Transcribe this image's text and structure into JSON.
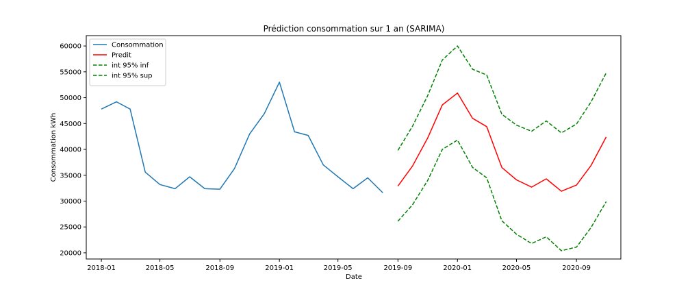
{
  "chart_data": {
    "type": "line",
    "title": "Prédiction consommation sur 1 an (SARIMA)",
    "xlabel": "Date",
    "ylabel": "Consommation kWh",
    "xlim": [
      "2017-12-01",
      "2020-12-01"
    ],
    "ylim": [
      18800,
      62000
    ],
    "x_ticks": [
      "2018-01",
      "2018-05",
      "2018-09",
      "2019-01",
      "2019-05",
      "2019-09",
      "2020-01",
      "2020-05",
      "2020-09"
    ],
    "y_ticks": [
      20000,
      25000,
      30000,
      35000,
      40000,
      45000,
      50000,
      55000,
      60000
    ],
    "legend_position": "top-left",
    "grid": false,
    "series": [
      {
        "name": "Consommation",
        "color": "#1f77b4",
        "style": "solid",
        "x": [
          "2018-01",
          "2018-02",
          "2018-03",
          "2018-04",
          "2018-05",
          "2018-06",
          "2018-07",
          "2018-08",
          "2018-09",
          "2018-10",
          "2018-11",
          "2018-12",
          "2019-01",
          "2019-02",
          "2019-03",
          "2019-04",
          "2019-05",
          "2019-06",
          "2019-07",
          "2019-08"
        ],
        "values": [
          47800,
          49200,
          47800,
          35600,
          33200,
          32400,
          34700,
          32400,
          32300,
          36300,
          43000,
          46900,
          53000,
          43400,
          42700,
          37000,
          34700,
          32400,
          34500,
          31600
        ]
      },
      {
        "name": "Predit",
        "color": "#ff0000",
        "style": "solid",
        "x": [
          "2019-09",
          "2019-10",
          "2019-11",
          "2019-12",
          "2020-01",
          "2020-02",
          "2020-03",
          "2020-04",
          "2020-05",
          "2020-06",
          "2020-07",
          "2020-08",
          "2020-09",
          "2020-10",
          "2020-11"
        ],
        "values": [
          32900,
          36800,
          42200,
          48600,
          50900,
          46000,
          44400,
          36500,
          34100,
          32700,
          34300,
          31900,
          33100,
          36900,
          42400
        ]
      },
      {
        "name": "int 95% inf",
        "color": "#008000",
        "style": "dashed",
        "x": [
          "2019-09",
          "2019-10",
          "2019-11",
          "2019-12",
          "2020-01",
          "2020-02",
          "2020-03",
          "2020-04",
          "2020-05",
          "2020-06",
          "2020-07",
          "2020-08",
          "2020-09",
          "2020-10",
          "2020-11"
        ],
        "values": [
          26100,
          29300,
          34000,
          40000,
          41800,
          36500,
          34500,
          26200,
          23600,
          21800,
          23100,
          20400,
          21100,
          24900,
          29900
        ]
      },
      {
        "name": "int 95% sup",
        "color": "#008000",
        "style": "dashed",
        "x": [
          "2019-09",
          "2019-10",
          "2019-11",
          "2019-12",
          "2020-01",
          "2020-02",
          "2020-03",
          "2020-04",
          "2020-05",
          "2020-06",
          "2020-07",
          "2020-08",
          "2020-09",
          "2020-10",
          "2020-11"
        ],
        "values": [
          39800,
          44500,
          50400,
          57300,
          60000,
          55500,
          54400,
          46800,
          44700,
          43500,
          45500,
          43200,
          44900,
          49200,
          54800
        ]
      }
    ]
  }
}
